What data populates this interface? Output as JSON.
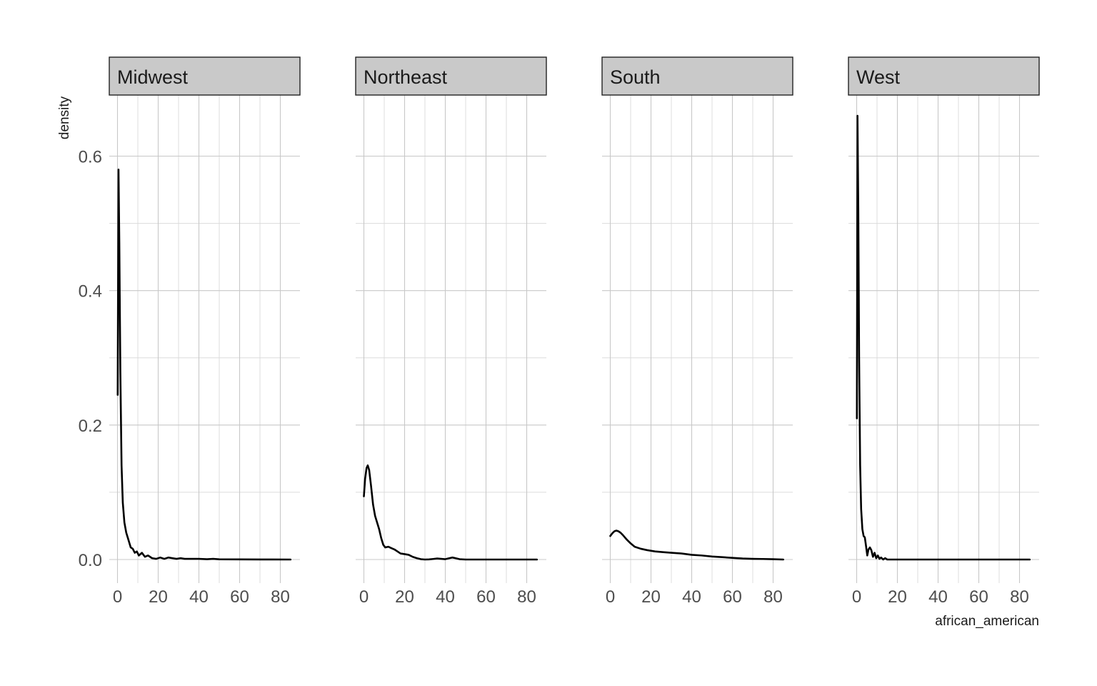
{
  "chart_data": {
    "type": "line",
    "xlabel": "african_american",
    "ylabel": "density",
    "xlim": [
      -2,
      88
    ],
    "ylim": [
      -0.03,
      0.7
    ],
    "x_ticks": [
      0,
      20,
      40,
      60,
      80
    ],
    "y_ticks": [
      0.0,
      0.2,
      0.4,
      0.6
    ],
    "y_tick_labels": [
      "0.0",
      "0.2",
      "0.4",
      "0.6"
    ],
    "grid": true,
    "panels": [
      {
        "name": "Midwest",
        "points": [
          [
            0.1,
            0.245
          ],
          [
            0.5,
            0.58
          ],
          [
            0.9,
            0.47
          ],
          [
            1.4,
            0.28
          ],
          [
            2,
            0.14
          ],
          [
            2.6,
            0.085
          ],
          [
            3.4,
            0.055
          ],
          [
            4.3,
            0.04
          ],
          [
            5.5,
            0.028
          ],
          [
            6.5,
            0.018
          ],
          [
            7.5,
            0.016
          ],
          [
            8.5,
            0.01
          ],
          [
            9.5,
            0.012
          ],
          [
            10.5,
            0.006
          ],
          [
            12,
            0.01
          ],
          [
            13.5,
            0.004
          ],
          [
            15,
            0.006
          ],
          [
            17,
            0.002
          ],
          [
            19,
            0.001
          ],
          [
            21,
            0.003
          ],
          [
            23,
            0.001
          ],
          [
            25,
            0.003
          ],
          [
            27,
            0.002
          ],
          [
            29,
            0.001
          ],
          [
            31,
            0.002
          ],
          [
            33,
            0.001
          ],
          [
            36,
            0.001
          ],
          [
            40,
            0.001
          ],
          [
            44,
            0.0005
          ],
          [
            47,
            0.001
          ],
          [
            50,
            0.0003
          ],
          [
            60,
            0.0002
          ],
          [
            70,
            0.0001
          ],
          [
            85,
            0
          ]
        ]
      },
      {
        "name": "Northeast",
        "points": [
          [
            0,
            0.094
          ],
          [
            0.6,
            0.12
          ],
          [
            1.3,
            0.136
          ],
          [
            1.9,
            0.14
          ],
          [
            2.6,
            0.133
          ],
          [
            3.5,
            0.11
          ],
          [
            4.5,
            0.082
          ],
          [
            5.5,
            0.065
          ],
          [
            6.5,
            0.055
          ],
          [
            7.5,
            0.045
          ],
          [
            8.5,
            0.032
          ],
          [
            9.5,
            0.022
          ],
          [
            10.5,
            0.018
          ],
          [
            12,
            0.019
          ],
          [
            13.5,
            0.017
          ],
          [
            15,
            0.015
          ],
          [
            16.5,
            0.012
          ],
          [
            18,
            0.009
          ],
          [
            20,
            0.008
          ],
          [
            22,
            0.007
          ],
          [
            24,
            0.004
          ],
          [
            26,
            0.002
          ],
          [
            28,
            0.0005
          ],
          [
            30,
            0
          ],
          [
            32,
            0.0002
          ],
          [
            34,
            0.0008
          ],
          [
            36,
            0.0015
          ],
          [
            38,
            0.001
          ],
          [
            40,
            0.0005
          ],
          [
            42,
            0.002
          ],
          [
            43.5,
            0.003
          ],
          [
            45,
            0.002
          ],
          [
            47,
            0.0005
          ],
          [
            50,
            0
          ],
          [
            60,
            0
          ],
          [
            70,
            0
          ],
          [
            85,
            0
          ]
        ]
      },
      {
        "name": "South",
        "points": [
          [
            0,
            0.035
          ],
          [
            1,
            0.039
          ],
          [
            2,
            0.042
          ],
          [
            3,
            0.043
          ],
          [
            4,
            0.042
          ],
          [
            5,
            0.04
          ],
          [
            6,
            0.037
          ],
          [
            8,
            0.03
          ],
          [
            10,
            0.024
          ],
          [
            12,
            0.019
          ],
          [
            15,
            0.016
          ],
          [
            18,
            0.014
          ],
          [
            22,
            0.012
          ],
          [
            26,
            0.011
          ],
          [
            30,
            0.01
          ],
          [
            35,
            0.009
          ],
          [
            40,
            0.007
          ],
          [
            45,
            0.006
          ],
          [
            50,
            0.0045
          ],
          [
            55,
            0.0035
          ],
          [
            60,
            0.0025
          ],
          [
            65,
            0.0015
          ],
          [
            70,
            0.001
          ],
          [
            75,
            0.0008
          ],
          [
            80,
            0.0005
          ],
          [
            85,
            0
          ]
        ]
      },
      {
        "name": "West",
        "points": [
          [
            0.1,
            0.21
          ],
          [
            0.4,
            0.66
          ],
          [
            0.8,
            0.52
          ],
          [
            1.2,
            0.3
          ],
          [
            1.7,
            0.14
          ],
          [
            2.2,
            0.075
          ],
          [
            2.8,
            0.045
          ],
          [
            3.4,
            0.035
          ],
          [
            4,
            0.033
          ],
          [
            4.6,
            0.02
          ],
          [
            5.2,
            0.006
          ],
          [
            5.8,
            0.015
          ],
          [
            6.5,
            0.018
          ],
          [
            7.2,
            0.014
          ],
          [
            8,
            0.004
          ],
          [
            8.8,
            0.01
          ],
          [
            9.6,
            0.002
          ],
          [
            10.4,
            0.006
          ],
          [
            11.2,
            0.001
          ],
          [
            12,
            0.003
          ],
          [
            13,
            0
          ],
          [
            14,
            0.002
          ],
          [
            15,
            0
          ],
          [
            20,
            0
          ],
          [
            30,
            0
          ],
          [
            40,
            0
          ],
          [
            50,
            0
          ],
          [
            60,
            0
          ],
          [
            70,
            0
          ],
          [
            85,
            0
          ]
        ]
      }
    ]
  }
}
